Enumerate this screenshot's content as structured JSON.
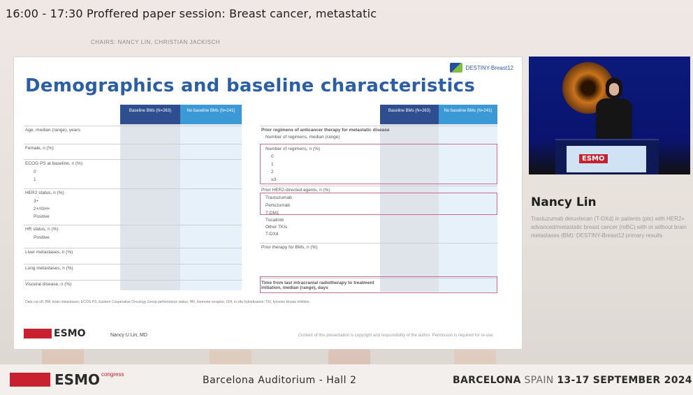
{
  "session": {
    "title": "16:00 - 17:30  Proffered paper session: Breast cancer, metastatic",
    "chairs": "CHAIRS: NANCY LIN, CHRISTIAN JACKISCH"
  },
  "slide": {
    "trial_logo": "DESTINY-Breast12",
    "title": "Demographics and baseline characteristics",
    "left_table": {
      "col1": "Baseline BMs (N=263)",
      "col2": "No baseline BMs (N=241)",
      "rows": [
        "Age, median (range), years",
        "Female, n (%)",
        "ECOG PS at baseline, n (%)",
        "0",
        "1",
        "HER2 status, n (%)",
        "3+",
        "2+/ISH+",
        "Positive",
        "HR status, n (%)",
        "Positive",
        "Liver metastases, n (%)",
        "Lung metastases, n (%)",
        "Visceral disease, n (%)"
      ]
    },
    "right_table": {
      "col1": "Baseline BMs (N=263)",
      "col2": "No baseline BMs (N=241)",
      "rows": [
        "Prior regimens of anticancer therapy for metastatic disease",
        "Number of regimens, median (range)",
        "Number of regimens, n (%)",
        "0",
        "1",
        "2",
        "≥3",
        "Prior HER2-directed agents, n (%)",
        "Trastuzumab",
        "Pertuzumab",
        "T-DM1",
        "Tucatinib",
        "Other TKIs",
        "T-DXd",
        "Prior therapy for BMs, n (%)",
        "Time from last intracranial radiotherapy to treatment initiation, median (range), days"
      ]
    },
    "footnote": "Data cut-off. BM, brain metastases; ECOG PS, Eastern Cooperative Oncology Group performance status; HR, hormone receptor; ISH, in situ hybridisation; TKI, tyrosine kinase inhibitor.",
    "presenter": "Nancy U Lin, MD",
    "content_note": "Content of this presentation is copyright and responsibility of the author. Permission is required for re-use."
  },
  "speaker": {
    "name": "Nancy Lin",
    "talk": "Trastuzumab deruxtecan (T-DXd) in patients (pts) with HER2+ advanced/metastatic breast cancer (mBC) with or without brain metastases (BM): DESTINY-Breast12 primary results"
  },
  "footer": {
    "logo": "ESMO",
    "congress": "congress",
    "hall": "Barcelona Auditorium - Hall 2",
    "city": "BARCELONA",
    "country": "SPAIN",
    "dates": "13-17 SEPTEMBER 2024"
  },
  "colors": {
    "title_blue": "#2a5fa8",
    "esmo_red": "#c8202f",
    "header_dark": "#2f4e8f",
    "header_light": "#3b9ad6",
    "highlight_pink": "#c86b9b"
  }
}
